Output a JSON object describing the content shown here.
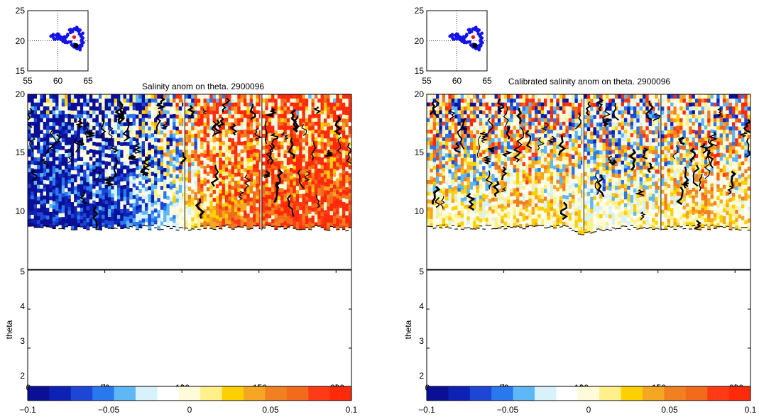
{
  "panels": [
    {
      "id": "left",
      "title": "Salinity anom on theta.   2900096",
      "inset": {
        "xticks": [
          55,
          60,
          65
        ],
        "yticks": [
          15,
          20,
          25
        ],
        "xlim": [
          55,
          65
        ],
        "ylim": [
          15,
          25
        ]
      },
      "upper_yticks": [
        10,
        15,
        20
      ],
      "lower_yticks": [
        2,
        3,
        4,
        5
      ],
      "lower_ylabel": "theta",
      "xticks": [
        0,
        50,
        100,
        150,
        200
      ],
      "colorbar_ticks": [
        "−0.1",
        "−0.05",
        "0",
        "0.05",
        "0.1"
      ]
    },
    {
      "id": "right",
      "title": "Calibrated salinity anom on theta. 2900096",
      "inset": {
        "xticks": [
          55,
          60,
          65
        ],
        "yticks": [
          15,
          20,
          25
        ],
        "xlim": [
          55,
          65
        ],
        "ylim": [
          15,
          25
        ]
      },
      "upper_yticks": [
        10,
        15,
        20
      ],
      "lower_yticks": [
        2,
        3,
        4,
        5
      ],
      "lower_ylabel": "theta",
      "xticks": [
        0,
        50,
        100,
        150,
        200
      ],
      "colorbar_ticks": [
        "−0.1",
        "−0.05",
        "0",
        "0.05",
        "0.1"
      ]
    }
  ],
  "chart_data": [
    {
      "type": "heatmap",
      "title": "Salinity anom on theta.   2900096",
      "ylabel": "theta",
      "xlim": [
        0,
        210
      ],
      "ylim": [
        2,
        20
      ],
      "x_ticks": [
        0,
        50,
        100,
        150,
        200
      ],
      "y_ticks": [
        2,
        3,
        4,
        5,
        10,
        15,
        20
      ],
      "colorbar": {
        "range": [
          -0.1,
          0.1
        ],
        "ticks": [
          -0.1,
          -0.05,
          0,
          0.05,
          0.1
        ],
        "colors": [
          "#0a0f96",
          "#0d22b4",
          "#1e46d6",
          "#2a78ee",
          "#5fb8f5",
          "#d8f2fb",
          "#ffffff",
          "#fffbd8",
          "#fff08a",
          "#ffd000",
          "#f5a623",
          "#f08020",
          "#f26a1a",
          "#ff3a14",
          "#ff2a0a"
        ]
      },
      "values_description_columns": [
        {
          "x": 0,
          "theta_bottom": 8.8,
          "theta_top": 20,
          "anom": -0.09
        },
        {
          "x": 30,
          "theta_bottom": 8.8,
          "theta_top": 20,
          "anom": -0.08
        },
        {
          "x": 60,
          "theta_bottom": 8.8,
          "theta_top": 20,
          "anom": -0.07
        },
        {
          "x": 90,
          "theta_bottom": 8.8,
          "theta_top": 20,
          "anom": -0.03
        },
        {
          "x": 100,
          "theta_bottom": 8.6,
          "theta_top": 20,
          "anom": 0.0
        },
        {
          "x": 120,
          "theta_bottom": 8.8,
          "theta_top": 20,
          "anom": 0.05
        },
        {
          "x": 150,
          "theta_bottom": 8.8,
          "theta_top": 20,
          "anom": 0.07
        },
        {
          "x": 180,
          "theta_bottom": 8.8,
          "theta_top": 20,
          "anom": 0.08
        },
        {
          "x": 210,
          "theta_bottom": 8.6,
          "theta_top": 20,
          "anom": 0.09
        }
      ],
      "inset_track": {
        "xlim": [
          55,
          65
        ],
        "ylim": [
          15,
          25
        ],
        "points": [
          [
            59,
            20.5
          ],
          [
            60,
            21
          ],
          [
            61,
            20
          ],
          [
            62,
            21.5
          ],
          [
            63,
            22
          ],
          [
            64,
            21
          ],
          [
            64,
            19.5
          ],
          [
            63.5,
            18.5
          ],
          [
            62,
            19.5
          ],
          [
            61,
            20.5
          ]
        ],
        "last_point": [
          62.7,
          20.6
        ],
        "start_point": [
          63,
          19.2
        ]
      }
    },
    {
      "type": "heatmap",
      "title": "Calibrated salinity anom on theta. 2900096",
      "ylabel": "theta",
      "xlim": [
        0,
        210
      ],
      "ylim": [
        2,
        20
      ],
      "x_ticks": [
        0,
        50,
        100,
        150,
        200
      ],
      "y_ticks": [
        2,
        3,
        4,
        5,
        10,
        15,
        20
      ],
      "colorbar": {
        "range": [
          -0.1,
          0.1
        ],
        "ticks": [
          -0.1,
          -0.05,
          0,
          0.05,
          0.1
        ],
        "colors": [
          "#0a0f96",
          "#0d22b4",
          "#1e46d6",
          "#2a78ee",
          "#5fb8f5",
          "#d8f2fb",
          "#ffffff",
          "#fffbd8",
          "#fff08a",
          "#ffd000",
          "#f5a623",
          "#f08020",
          "#f26a1a",
          "#ff3a14",
          "#ff2a0a"
        ]
      },
      "values_description_columns": [
        {
          "x": 0,
          "theta_bottom": 8.8,
          "theta_top": 20,
          "anom": 0.01
        },
        {
          "x": 30,
          "theta_bottom": 8.8,
          "theta_top": 20,
          "anom": 0.0
        },
        {
          "x": 60,
          "theta_bottom": 8.8,
          "theta_top": 20,
          "anom": 0.02
        },
        {
          "x": 90,
          "theta_bottom": 8.8,
          "theta_top": 20,
          "anom": 0.01
        },
        {
          "x": 100,
          "theta_bottom": 8.2,
          "theta_top": 20,
          "anom": 0.0
        },
        {
          "x": 120,
          "theta_bottom": 8.8,
          "theta_top": 20,
          "anom": -0.01
        },
        {
          "x": 150,
          "theta_bottom": 8.8,
          "theta_top": 20,
          "anom": 0.01
        },
        {
          "x": 180,
          "theta_bottom": 8.8,
          "theta_top": 20,
          "anom": 0.02
        },
        {
          "x": 210,
          "theta_bottom": 8.6,
          "theta_top": 20,
          "anom": 0.01
        }
      ],
      "inset_track": {
        "xlim": [
          55,
          65
        ],
        "ylim": [
          15,
          25
        ],
        "points": [
          [
            59,
            20.5
          ],
          [
            60,
            21
          ],
          [
            61,
            20
          ],
          [
            62,
            21.5
          ],
          [
            63,
            22
          ],
          [
            64,
            21
          ],
          [
            64,
            19.5
          ],
          [
            63.5,
            18.5
          ],
          [
            62,
            19.5
          ],
          [
            61,
            20.5
          ]
        ],
        "last_point": [
          62.7,
          20.6
        ],
        "start_point": [
          63,
          19.2
        ]
      }
    }
  ]
}
